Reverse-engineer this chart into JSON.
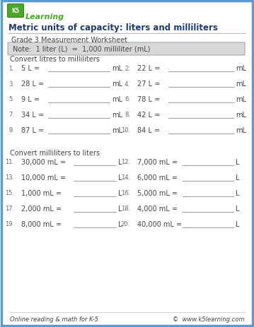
{
  "bg_color": "#ffffff",
  "border_color": "#5b9bd5",
  "title": "Metric units of capacity: liters and milliliters",
  "subtitle": "Grade 3 Measurement Worksheet",
  "note": "Note:  1 liter (L)  =  1,000 milliliter (mL)",
  "section1_header": "Convert litres to milliliters",
  "section2_header": "Convert milliliters to liters",
  "section1_problems": [
    [
      "1.",
      "5 L =",
      "mL",
      "2.",
      "22 L =",
      "mL"
    ],
    [
      "3.",
      "28 L =",
      "mL",
      "4.",
      "27 L =",
      "mL"
    ],
    [
      "5.",
      "9 L =",
      "mL",
      "6.",
      "78 L =",
      "mL"
    ],
    [
      "7.",
      "34 L =",
      "mL",
      "8.",
      "42 L =",
      "mL"
    ],
    [
      "9.",
      "87 L =",
      "mL",
      "10.",
      "84 L =",
      "mL"
    ]
  ],
  "section2_problems": [
    [
      "11.",
      "30,000 mL =",
      "L",
      "12.",
      "7,000 mL =",
      "L"
    ],
    [
      "13.",
      "10,000 mL =",
      "L",
      "14.",
      "6,000 mL =",
      "L"
    ],
    [
      "15.",
      "1,000 mL =",
      "L",
      "16.",
      "5,000 mL =",
      "L"
    ],
    [
      "17.",
      "2,000 mL =",
      "L",
      "18.",
      "4,000 mL =",
      "L"
    ],
    [
      "19.",
      "8,000 mL =",
      "L",
      "20.",
      "40,000 mL =",
      "L"
    ]
  ],
  "footer_left": "Online reading & math for K-5",
  "footer_right": "©  www.k5learning.com",
  "title_color": "#1e3a6e",
  "text_color": "#444444",
  "light_text": "#666666",
  "note_bg": "#d8d8d8",
  "note_border": "#aaaaaa",
  "line_color": "#999999",
  "logo_green": "#4aaa28",
  "logo_blue": "#3a7bbf"
}
